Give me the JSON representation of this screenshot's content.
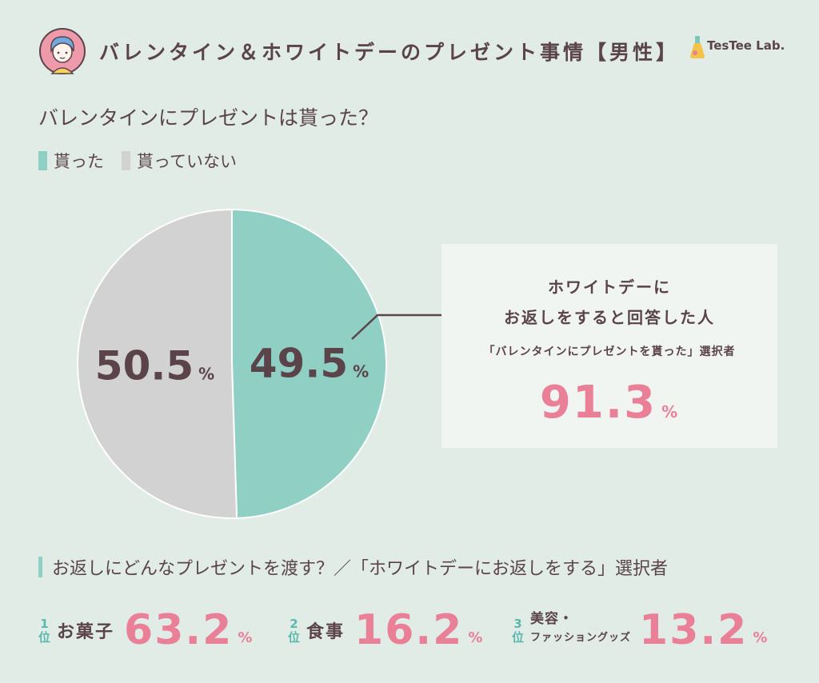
{
  "header": {
    "title": "バレンタイン＆ホワイトデーのプレゼント事情【男性】",
    "logo": "TesTee Lab."
  },
  "question": "バレンタインにプレゼントは貰った？",
  "legend": [
    "貰った",
    "貰っていない"
  ],
  "chart_data": {
    "type": "pie",
    "labels": [
      "貰った",
      "貰っていない"
    ],
    "values": [
      49.5,
      50.5
    ],
    "value_labels": [
      "49.5",
      "50.5"
    ],
    "unit": "%",
    "colors": [
      "#8fcfc4",
      "#d2d2d2"
    ]
  },
  "callout": {
    "line1": "ホワイトデーに",
    "line2": "お返しをすると回答した人",
    "line3": "「バレンタインにプレゼントを貰った」選択者",
    "value": "91.3",
    "unit": "%"
  },
  "subquestion": "お返しにどんなプレゼントを渡す？／「ホワイトデーにお返しをする」選択者",
  "ranking": [
    {
      "rank": "1",
      "rank_suffix": "位",
      "label": "お菓子",
      "value": "63.2",
      "unit": "%"
    },
    {
      "rank": "2",
      "rank_suffix": "位",
      "label": "食事",
      "value": "16.2",
      "unit": "%"
    },
    {
      "rank": "3",
      "rank_suffix": "位",
      "label_line1": "美容・",
      "label_line2": "ファッショングッズ",
      "value": "13.2",
      "unit": "%"
    }
  ],
  "colors": {
    "accent_teal": "#8fcfc4",
    "grey": "#d2d2d2",
    "pink": "#ea7f98",
    "text": "#5a4449",
    "background": "#e1ece6"
  }
}
